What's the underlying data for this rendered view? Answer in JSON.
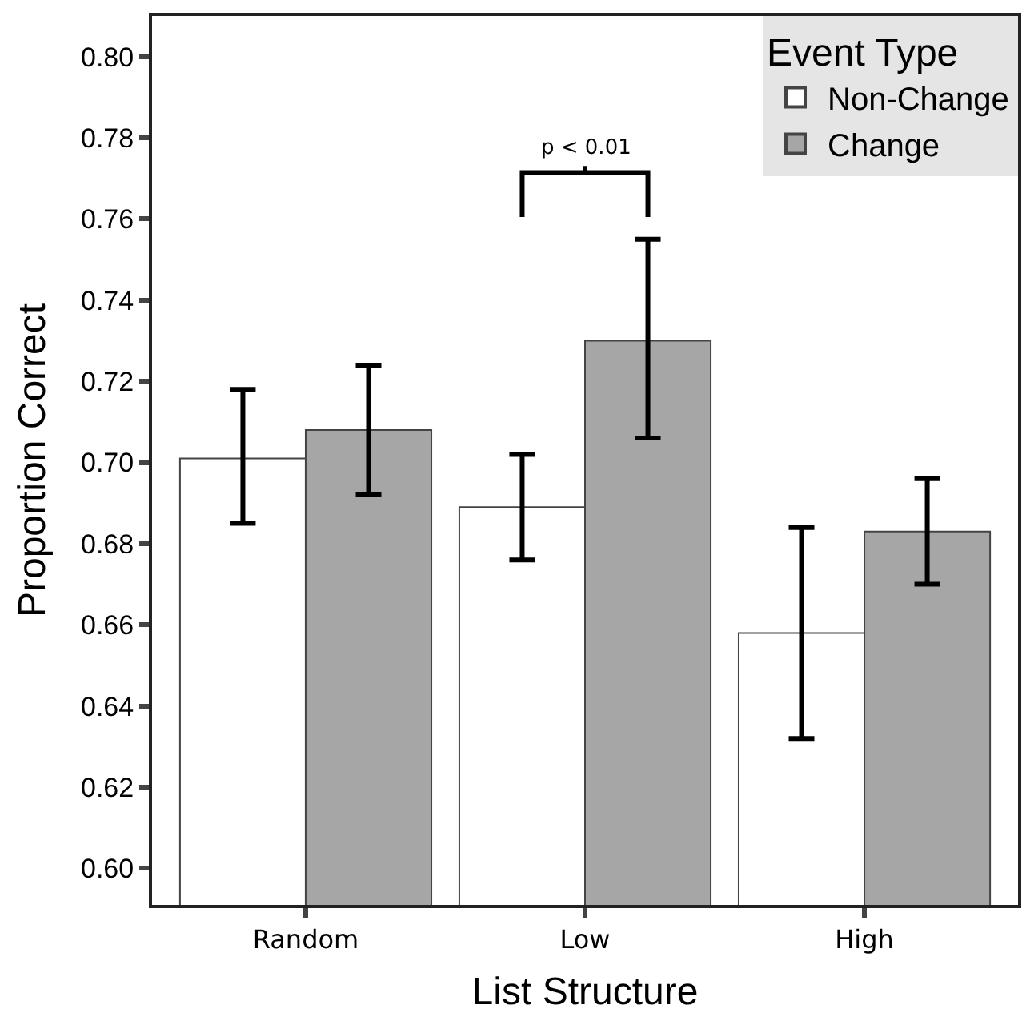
{
  "chart_data": {
    "type": "bar",
    "xlabel": "List Structure",
    "ylabel": "Proportion Correct",
    "legend_title": "Event Type",
    "categories": [
      "Random",
      "Low",
      "High"
    ],
    "series": [
      {
        "name": "Non-Change",
        "color": "#ffffff",
        "values": [
          0.701,
          0.689,
          0.658
        ],
        "errors": [
          [
            0.685,
            0.718
          ],
          [
            0.676,
            0.702
          ],
          [
            0.632,
            0.684
          ]
        ]
      },
      {
        "name": "Change",
        "color": "#a6a6a6",
        "values": [
          0.708,
          0.73,
          0.683
        ],
        "errors": [
          [
            0.692,
            0.724
          ],
          [
            0.706,
            0.755
          ],
          [
            0.67,
            0.696
          ]
        ]
      }
    ],
    "ylim": [
      0.591,
      0.81
    ],
    "yticks": [
      {
        "value": 0.6,
        "label": "0.60"
      },
      {
        "value": 0.62,
        "label": "0.62"
      },
      {
        "value": 0.64,
        "label": "0.64"
      },
      {
        "value": 0.66,
        "label": "0.66"
      },
      {
        "value": 0.68,
        "label": "0.68"
      },
      {
        "value": 0.7,
        "label": "0.70"
      },
      {
        "value": 0.72,
        "label": "0.72"
      },
      {
        "value": 0.74,
        "label": "0.74"
      },
      {
        "value": 0.76,
        "label": "0.76"
      },
      {
        "value": 0.78,
        "label": "0.78"
      },
      {
        "value": 0.8,
        "label": "0.80"
      }
    ],
    "annotations": [
      "p < 0.01"
    ],
    "legend": "top right"
  }
}
